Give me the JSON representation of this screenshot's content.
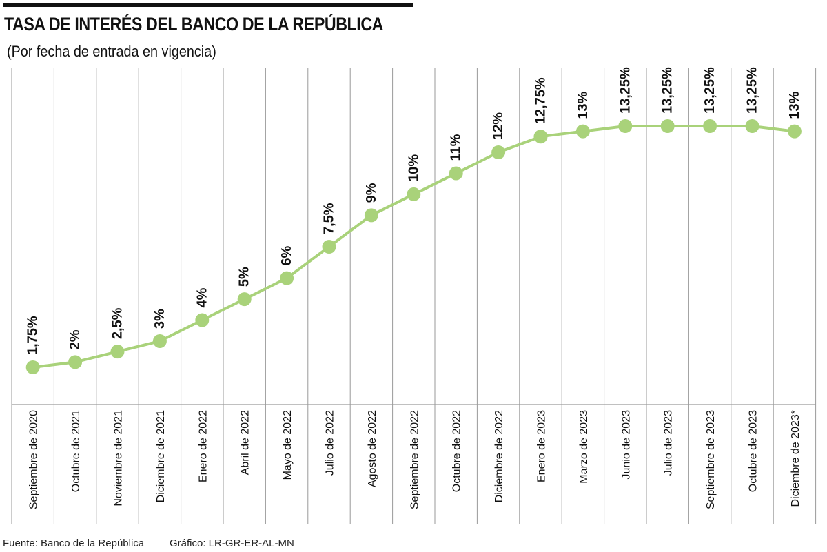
{
  "header": {
    "title": "TASA DE INTERÉS DEL BANCO DE LA REPÚBLICA",
    "subtitle": "(Por fecha de entrada en vigencia)"
  },
  "footer": {
    "source": "Fuente: Banco de la República",
    "credit": "Gráfico: LR-GR-ER-AL-MN"
  },
  "colors": {
    "line": "#a9d27a",
    "point": "#a9d27a",
    "grid": "#9a9a9a",
    "text": "#111111"
  },
  "chart_data": {
    "type": "line",
    "title": "TASA DE INTERÉS DEL BANCO DE LA REPÚBLICA",
    "subtitle": "(Por fecha de entrada en vigencia)",
    "categories": [
      "Septiembre de 2020",
      "Octubre de 2021",
      "Noviembre de 2021",
      "Diciembre de 2021",
      "Enero de 2022",
      "Abril de 2022",
      "Mayo de 2022",
      "Julio de 2022",
      "Agosto de 2022",
      "Septiembre de 2022",
      "Octubre de 2022",
      "Diciembre de 2022",
      "Enero de 2023",
      "Marzo de 2023",
      "Junio de 2023",
      "Julio de 2023",
      "Septiembre de 2023",
      "Octubre de 2023",
      "Diciembre de 2023*"
    ],
    "values": [
      1.75,
      2,
      2.5,
      3,
      4,
      5,
      6,
      7.5,
      9,
      10,
      11,
      12,
      12.75,
      13,
      13.25,
      13.25,
      13.25,
      13.25,
      13
    ],
    "data_labels": [
      "1,75%",
      "2%",
      "2,5%",
      "3%",
      "4%",
      "5%",
      "6%",
      "7,5%",
      "9%",
      "10%",
      "11%",
      "12%",
      "12,75%",
      "13%",
      "13,25%",
      "13,25%",
      "13,25%",
      "13,25%",
      "13%"
    ],
    "ylim": [
      0,
      15
    ],
    "grid": "vertical",
    "legend": "none",
    "xlabel": "",
    "ylabel": ""
  }
}
